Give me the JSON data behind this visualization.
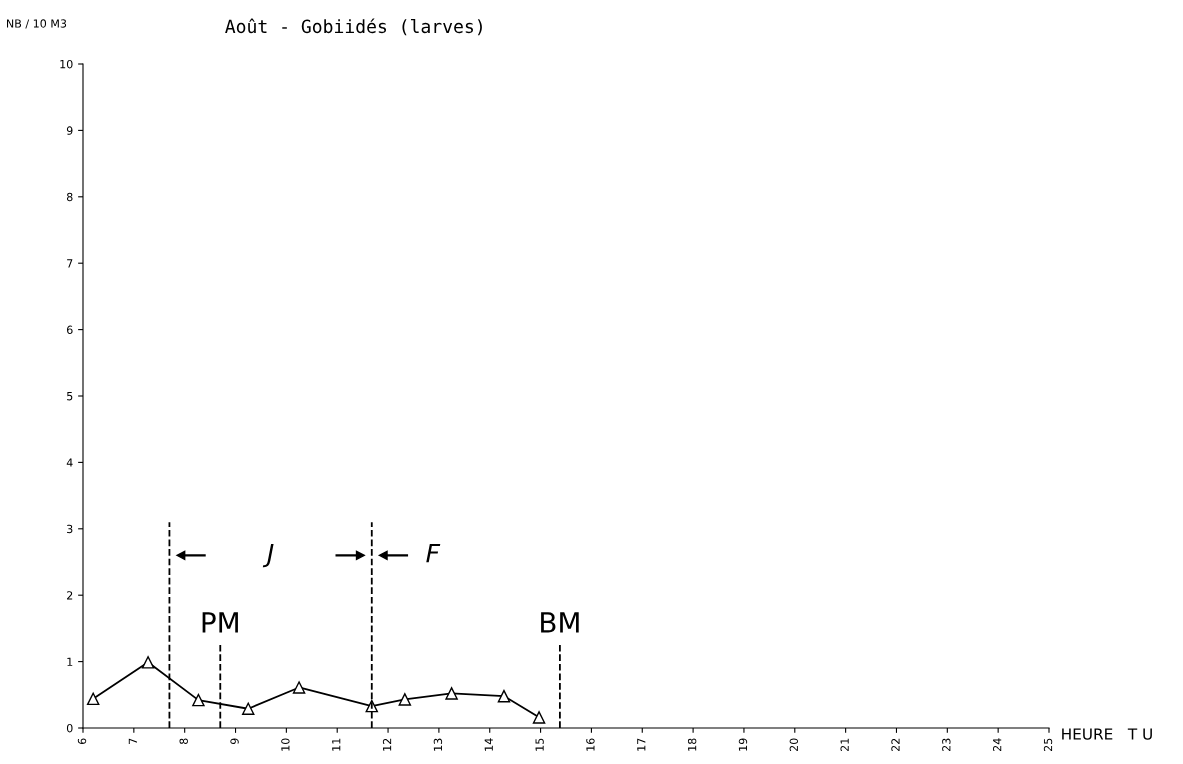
{
  "chart_data": {
    "type": "line",
    "title": "Août - Gobiidés (larves)",
    "ylabel": "NB / 10 M3",
    "xlabel": "HEURE   T U",
    "x": [
      6.2,
      7.28,
      8.27,
      9.25,
      10.25,
      11.68,
      12.33,
      13.25,
      14.28,
      14.97
    ],
    "values": [
      0.44,
      0.99,
      0.42,
      0.29,
      0.61,
      0.33,
      0.43,
      0.52,
      0.48,
      0.16
    ],
    "color": "#000000",
    "marker": "triangle",
    "line_style": "solid",
    "xlim": [
      6,
      25
    ],
    "xticks": [
      6,
      7,
      8,
      9,
      10,
      11,
      12,
      13,
      14,
      15,
      16,
      17,
      18,
      19,
      20,
      21,
      22,
      23,
      24,
      25
    ],
    "ylim": [
      0,
      10
    ],
    "yticks": [
      0,
      1,
      2,
      3,
      4,
      5,
      6,
      7,
      8,
      9,
      10
    ],
    "grid": false,
    "ref_lines": [
      {
        "axis": "x",
        "value": 7.7,
        "line_style": "dashed"
      },
      {
        "axis": "x",
        "value": 8.7,
        "label": "PM",
        "line_style": "dashed"
      },
      {
        "axis": "x",
        "value": 11.68,
        "line_style": "dashed"
      },
      {
        "axis": "x",
        "value": 15.38,
        "label": "BM",
        "line_style": "dashed"
      }
    ],
    "annotations": [
      "J",
      "F"
    ]
  }
}
